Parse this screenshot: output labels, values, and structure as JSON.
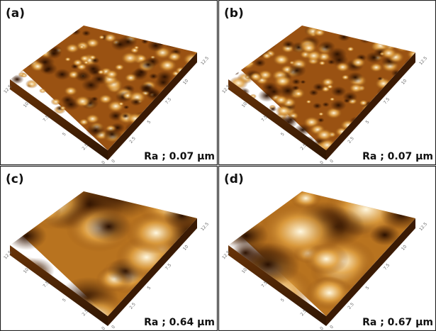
{
  "panels": [
    {
      "label": "(a)",
      "ra": "Ra ; 0.07 μm"
    },
    {
      "label": "(b)",
      "ra": "Ra ; 0.07 μm"
    },
    {
      "label": "(c)",
      "ra": "Ra ; 0.64 μm"
    },
    {
      "label": "(d)",
      "ra": "Ra ; 0.67 μm"
    }
  ],
  "axis_ticks": [
    "0",
    "2.5",
    "5",
    "7.5",
    "10",
    "12.5"
  ]
}
